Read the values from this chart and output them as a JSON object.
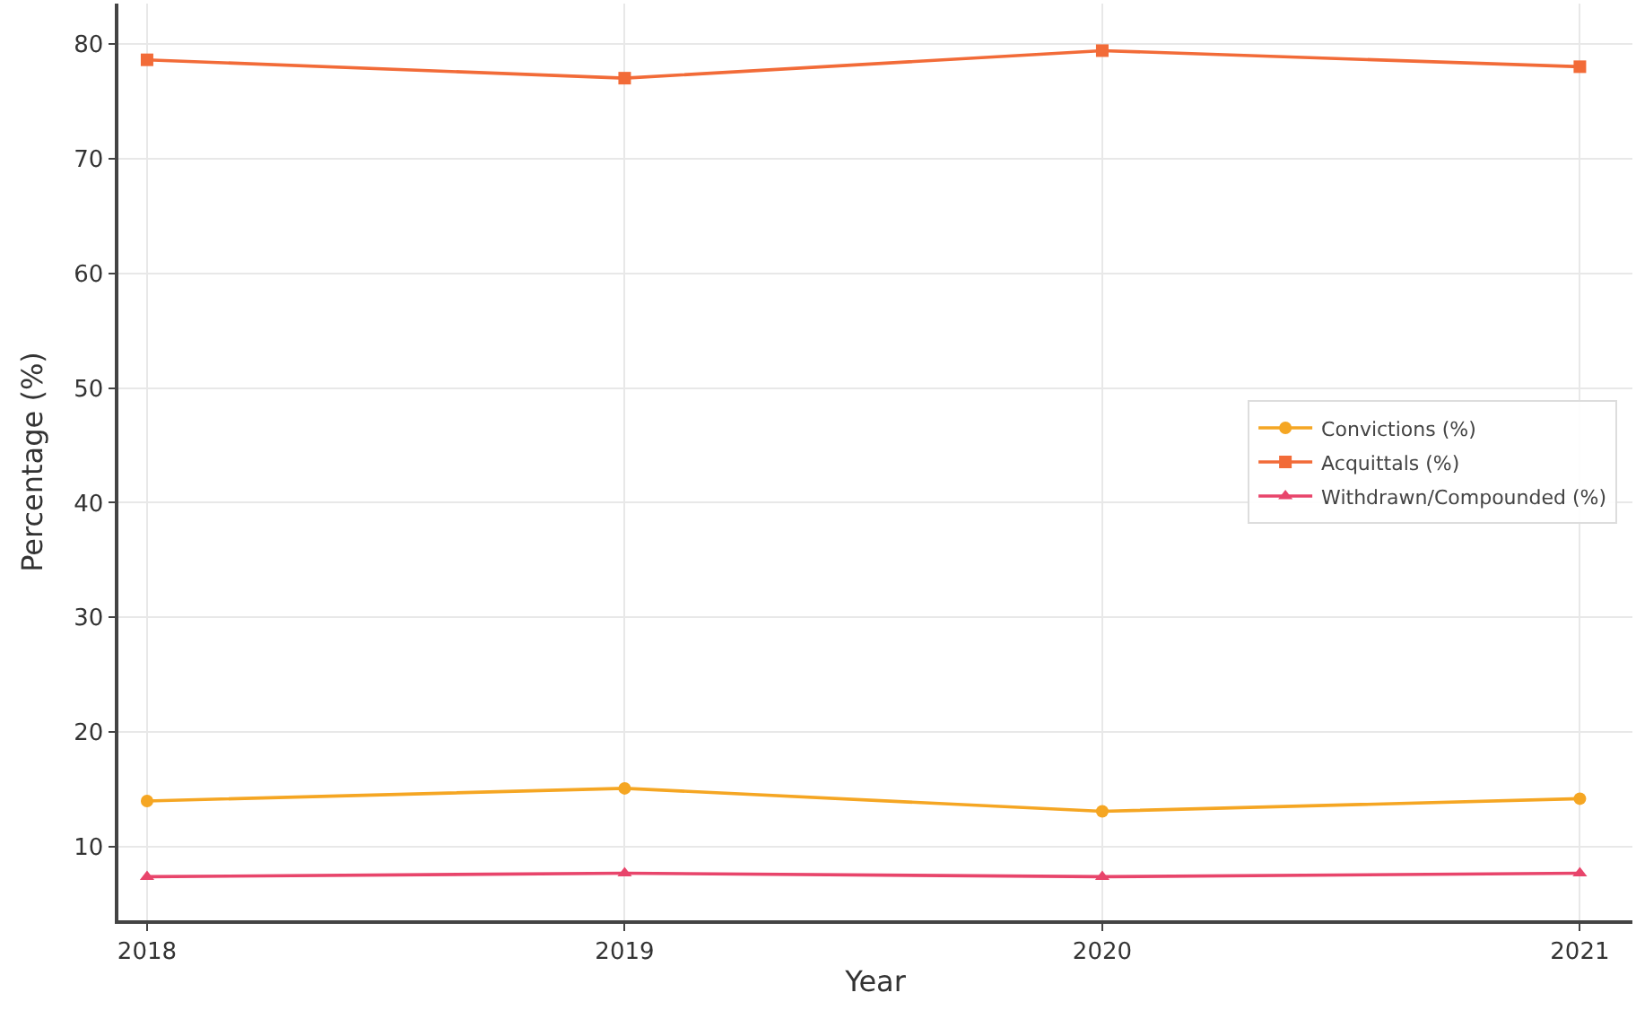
{
  "chart_data": {
    "type": "line",
    "xlabel": "Year",
    "ylabel": "Percentage (%)",
    "x": [
      2018,
      2019,
      2020,
      2021
    ],
    "xlim": [
      2017.94,
      2021.11
    ],
    "xticks": [
      2018,
      2019,
      2020,
      2021
    ],
    "ylim": [
      3.6,
      83.5
    ],
    "yticks": [
      10,
      20,
      30,
      40,
      50,
      60,
      70,
      80
    ],
    "grid": true,
    "legend": "right",
    "series": [
      {
        "name": "Convictions (%)",
        "color": "#f5a623",
        "marker": "circle",
        "values": [
          14.0,
          15.1,
          13.1,
          14.2
        ]
      },
      {
        "name": "Acquittals (%)",
        "color": "#f26b38",
        "marker": "square",
        "values": [
          78.6,
          77.0,
          79.4,
          78.0
        ]
      },
      {
        "name": "Withdrawn/Compounded (%)",
        "color": "#e8456b",
        "marker": "triangle",
        "values": [
          7.4,
          7.7,
          7.4,
          7.7
        ]
      }
    ]
  }
}
